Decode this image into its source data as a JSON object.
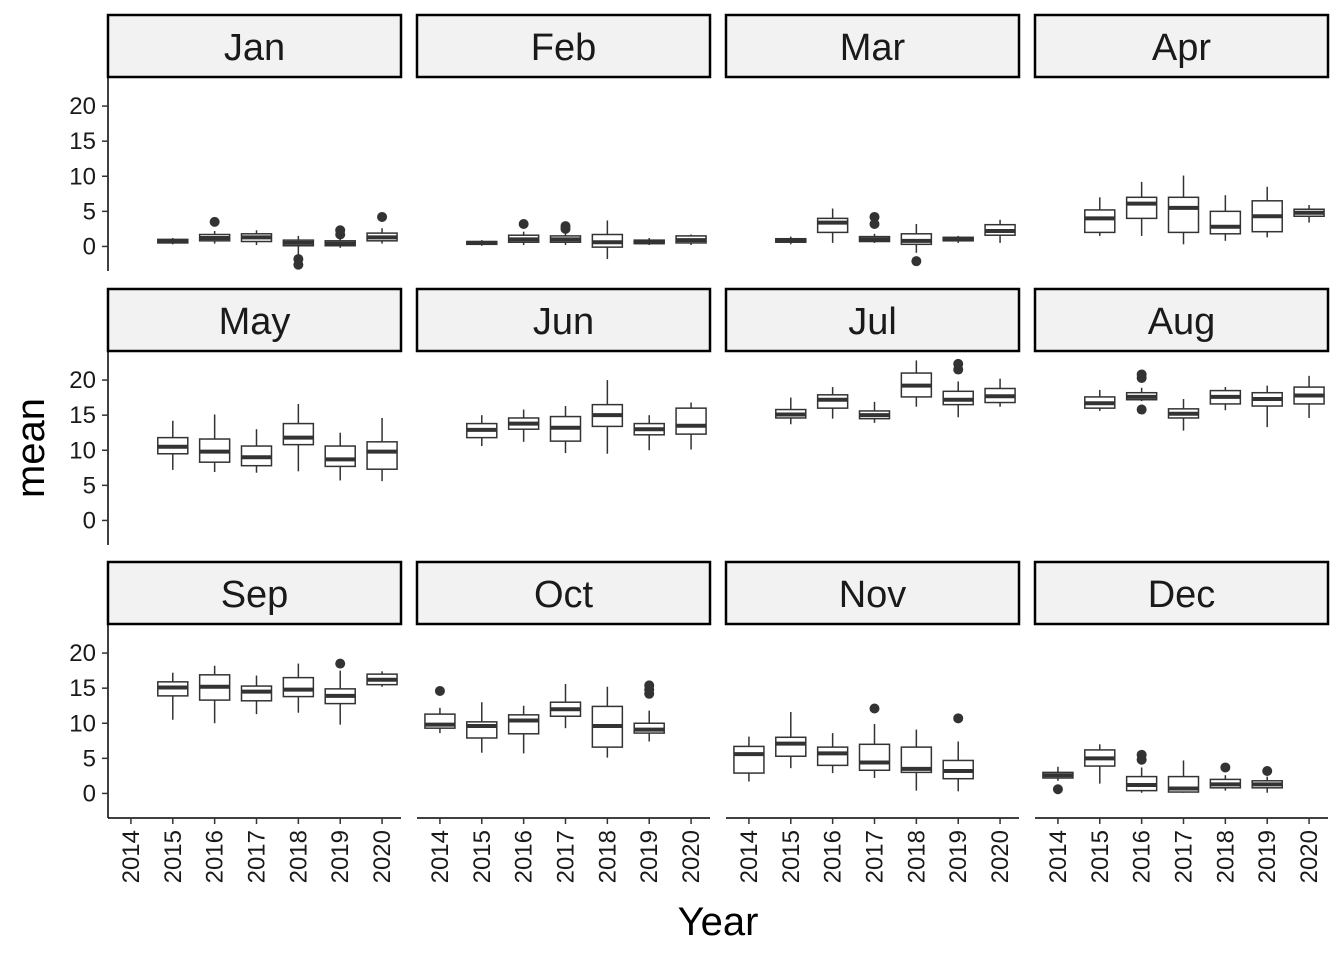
{
  "chart_data": {
    "type": "boxplot",
    "facet_by": "month",
    "x_label": "Year",
    "y_label": "mean",
    "x_categories": [
      "2014",
      "2015",
      "2016",
      "2017",
      "2018",
      "2019",
      "2020"
    ],
    "y_ticks": [
      0,
      5,
      10,
      15,
      20
    ],
    "ylim": [
      -3.5,
      24
    ],
    "grid": false,
    "colors": {
      "box_fill": "#ffffff",
      "box_line": "#333333",
      "strip_fill": "#f2f2f2",
      "strip_border": "#000000"
    },
    "panels": [
      {
        "month": "Jan",
        "boxes": [
          {
            "year": "2015",
            "whisker_low": 0.3,
            "q1": 0.5,
            "median": 0.8,
            "q3": 1.0,
            "whisker_high": 1.2,
            "outliers": []
          },
          {
            "year": "2016",
            "whisker_low": 0.4,
            "q1": 0.8,
            "median": 1.2,
            "q3": 1.7,
            "whisker_high": 2.2,
            "outliers": [
              3.5
            ]
          },
          {
            "year": "2017",
            "whisker_low": 0.2,
            "q1": 0.7,
            "median": 1.3,
            "q3": 1.8,
            "whisker_high": 2.3,
            "outliers": []
          },
          {
            "year": "2018",
            "whisker_low": -1.2,
            "q1": 0.1,
            "median": 0.5,
            "q3": 0.9,
            "whisker_high": 1.5,
            "outliers": [
              -1.8,
              -2.6
            ]
          },
          {
            "year": "2019",
            "whisker_low": -0.2,
            "q1": 0.1,
            "median": 0.4,
            "q3": 0.8,
            "whisker_high": 1.3,
            "outliers": [
              1.7,
              2.3
            ]
          },
          {
            "year": "2020",
            "whisker_low": 0.4,
            "q1": 0.8,
            "median": 1.3,
            "q3": 1.9,
            "whisker_high": 2.6,
            "outliers": [
              4.2
            ]
          }
        ]
      },
      {
        "month": "Feb",
        "boxes": [
          {
            "year": "2015",
            "whisker_low": 0.1,
            "q1": 0.3,
            "median": 0.5,
            "q3": 0.7,
            "whisker_high": 0.9,
            "outliers": []
          },
          {
            "year": "2016",
            "whisker_low": 0.2,
            "q1": 0.6,
            "median": 1.0,
            "q3": 1.6,
            "whisker_high": 2.1,
            "outliers": [
              3.2
            ]
          },
          {
            "year": "2017",
            "whisker_low": 0.2,
            "q1": 0.6,
            "median": 1.0,
            "q3": 1.5,
            "whisker_high": 1.9,
            "outliers": [
              2.5,
              2.9
            ]
          },
          {
            "year": "2018",
            "whisker_low": -1.8,
            "q1": -0.1,
            "median": 0.6,
            "q3": 1.7,
            "whisker_high": 3.7,
            "outliers": []
          },
          {
            "year": "2019",
            "whisker_low": 0.2,
            "q1": 0.4,
            "median": 0.6,
            "q3": 0.9,
            "whisker_high": 1.2,
            "outliers": []
          },
          {
            "year": "2020",
            "whisker_low": 0.2,
            "q1": 0.5,
            "median": 0.9,
            "q3": 1.5,
            "whisker_high": 1.7,
            "outliers": []
          }
        ]
      },
      {
        "month": "Mar",
        "boxes": [
          {
            "year": "2015",
            "whisker_low": 0.3,
            "q1": 0.6,
            "median": 0.9,
            "q3": 1.1,
            "whisker_high": 1.4,
            "outliers": []
          },
          {
            "year": "2016",
            "whisker_low": 0.5,
            "q1": 2.0,
            "median": 3.4,
            "q3": 4.0,
            "whisker_high": 5.4,
            "outliers": []
          },
          {
            "year": "2017",
            "whisker_low": 0.5,
            "q1": 0.7,
            "median": 1.0,
            "q3": 1.4,
            "whisker_high": 1.8,
            "outliers": [
              3.2,
              4.2
            ]
          },
          {
            "year": "2018",
            "whisker_low": -0.9,
            "q1": 0.3,
            "median": 0.8,
            "q3": 1.8,
            "whisker_high": 3.2,
            "outliers": [
              -2.1
            ]
          },
          {
            "year": "2019",
            "whisker_low": 0.5,
            "q1": 0.8,
            "median": 1.0,
            "q3": 1.3,
            "whisker_high": 1.5,
            "outliers": []
          },
          {
            "year": "2020",
            "whisker_low": 0.5,
            "q1": 1.6,
            "median": 2.2,
            "q3": 3.1,
            "whisker_high": 3.8,
            "outliers": []
          }
        ]
      },
      {
        "month": "Apr",
        "boxes": [
          {
            "year": "2015",
            "whisker_low": 1.5,
            "q1": 2.0,
            "median": 4.0,
            "q3": 5.2,
            "whisker_high": 7.0,
            "outliers": []
          },
          {
            "year": "2016",
            "whisker_low": 1.5,
            "q1": 4.0,
            "median": 6.1,
            "q3": 7.0,
            "whisker_high": 9.2,
            "outliers": []
          },
          {
            "year": "2017",
            "whisker_low": 0.3,
            "q1": 2.0,
            "median": 5.5,
            "q3": 7.0,
            "whisker_high": 10.1,
            "outliers": []
          },
          {
            "year": "2018",
            "whisker_low": 0.8,
            "q1": 1.8,
            "median": 2.8,
            "q3": 5.0,
            "whisker_high": 7.3,
            "outliers": []
          },
          {
            "year": "2019",
            "whisker_low": 1.3,
            "q1": 2.1,
            "median": 4.3,
            "q3": 6.5,
            "whisker_high": 8.5,
            "outliers": []
          },
          {
            "year": "2020",
            "whisker_low": 3.4,
            "q1": 4.3,
            "median": 4.8,
            "q3": 5.3,
            "whisker_high": 5.9,
            "outliers": []
          }
        ]
      },
      {
        "month": "May",
        "boxes": [
          {
            "year": "2015",
            "whisker_low": 7.2,
            "q1": 9.5,
            "median": 10.5,
            "q3": 11.8,
            "whisker_high": 14.2,
            "outliers": []
          },
          {
            "year": "2016",
            "whisker_low": 6.9,
            "q1": 8.3,
            "median": 9.8,
            "q3": 11.6,
            "whisker_high": 15.1,
            "outliers": []
          },
          {
            "year": "2017",
            "whisker_low": 6.8,
            "q1": 7.8,
            "median": 9.0,
            "q3": 10.6,
            "whisker_high": 13.0,
            "outliers": []
          },
          {
            "year": "2018",
            "whisker_low": 7.0,
            "q1": 10.8,
            "median": 11.8,
            "q3": 13.8,
            "whisker_high": 16.6,
            "outliers": []
          },
          {
            "year": "2019",
            "whisker_low": 5.7,
            "q1": 7.7,
            "median": 8.7,
            "q3": 10.6,
            "whisker_high": 12.5,
            "outliers": []
          },
          {
            "year": "2020",
            "whisker_low": 5.6,
            "q1": 7.3,
            "median": 9.8,
            "q3": 11.2,
            "whisker_high": 14.6,
            "outliers": []
          }
        ]
      },
      {
        "month": "Jun",
        "boxes": [
          {
            "year": "2015",
            "whisker_low": 10.6,
            "q1": 11.8,
            "median": 12.9,
            "q3": 13.8,
            "whisker_high": 15.0,
            "outliers": []
          },
          {
            "year": "2016",
            "whisker_low": 11.2,
            "q1": 13.0,
            "median": 13.8,
            "q3": 14.6,
            "whisker_high": 15.8,
            "outliers": []
          },
          {
            "year": "2017",
            "whisker_low": 9.6,
            "q1": 11.3,
            "median": 13.2,
            "q3": 14.8,
            "whisker_high": 16.3,
            "outliers": []
          },
          {
            "year": "2018",
            "whisker_low": 9.5,
            "q1": 13.4,
            "median": 15.0,
            "q3": 16.5,
            "whisker_high": 20.0,
            "outliers": []
          },
          {
            "year": "2019",
            "whisker_low": 10.0,
            "q1": 12.2,
            "median": 13.0,
            "q3": 13.8,
            "whisker_high": 15.0,
            "outliers": []
          },
          {
            "year": "2020",
            "whisker_low": 10.1,
            "q1": 12.3,
            "median": 13.5,
            "q3": 16.0,
            "whisker_high": 16.8,
            "outliers": []
          }
        ]
      },
      {
        "month": "Jul",
        "boxes": [
          {
            "year": "2015",
            "whisker_low": 13.7,
            "q1": 14.6,
            "median": 15.1,
            "q3": 15.8,
            "whisker_high": 17.5,
            "outliers": []
          },
          {
            "year": "2016",
            "whisker_low": 14.5,
            "q1": 16.0,
            "median": 17.2,
            "q3": 17.9,
            "whisker_high": 19.0,
            "outliers": []
          },
          {
            "year": "2017",
            "whisker_low": 13.9,
            "q1": 14.5,
            "median": 15.0,
            "q3": 15.6,
            "whisker_high": 16.9,
            "outliers": []
          },
          {
            "year": "2018",
            "whisker_low": 16.2,
            "q1": 17.6,
            "median": 19.2,
            "q3": 21.0,
            "whisker_high": 22.8,
            "outliers": []
          },
          {
            "year": "2019",
            "whisker_low": 14.7,
            "q1": 16.5,
            "median": 17.2,
            "q3": 18.4,
            "whisker_high": 19.8,
            "outliers": [
              21.5,
              22.3
            ]
          },
          {
            "year": "2020",
            "whisker_low": 16.2,
            "q1": 16.8,
            "median": 17.7,
            "q3": 18.8,
            "whisker_high": 20.2,
            "outliers": []
          }
        ]
      },
      {
        "month": "Aug",
        "boxes": [
          {
            "year": "2015",
            "whisker_low": 15.6,
            "q1": 16.0,
            "median": 16.7,
            "q3": 17.6,
            "whisker_high": 18.6,
            "outliers": []
          },
          {
            "year": "2016",
            "whisker_low": 17.0,
            "q1": 17.2,
            "median": 17.6,
            "q3": 18.2,
            "whisker_high": 18.9,
            "outliers": [
              15.8,
              20.3,
              20.8
            ]
          },
          {
            "year": "2017",
            "whisker_low": 12.8,
            "q1": 14.6,
            "median": 15.2,
            "q3": 15.9,
            "whisker_high": 17.3,
            "outliers": []
          },
          {
            "year": "2018",
            "whisker_low": 15.7,
            "q1": 16.6,
            "median": 17.6,
            "q3": 18.5,
            "whisker_high": 19.0,
            "outliers": []
          },
          {
            "year": "2019",
            "whisker_low": 13.3,
            "q1": 16.3,
            "median": 17.3,
            "q3": 18.2,
            "whisker_high": 19.2,
            "outliers": []
          },
          {
            "year": "2020",
            "whisker_low": 14.6,
            "q1": 16.6,
            "median": 17.8,
            "q3": 19.0,
            "whisker_high": 20.6,
            "outliers": []
          }
        ]
      },
      {
        "month": "Sep",
        "boxes": [
          {
            "year": "2015",
            "whisker_low": 10.5,
            "q1": 13.9,
            "median": 15.1,
            "q3": 15.9,
            "whisker_high": 17.2,
            "outliers": []
          },
          {
            "year": "2016",
            "whisker_low": 10.0,
            "q1": 13.3,
            "median": 15.2,
            "q3": 16.9,
            "whisker_high": 18.2,
            "outliers": []
          },
          {
            "year": "2017",
            "whisker_low": 11.3,
            "q1": 13.2,
            "median": 14.5,
            "q3": 15.3,
            "whisker_high": 16.8,
            "outliers": []
          },
          {
            "year": "2018",
            "whisker_low": 11.5,
            "q1": 13.8,
            "median": 14.8,
            "q3": 16.5,
            "whisker_high": 18.5,
            "outliers": []
          },
          {
            "year": "2019",
            "whisker_low": 9.8,
            "q1": 12.8,
            "median": 13.9,
            "q3": 14.9,
            "whisker_high": 17.5,
            "outliers": [
              18.5
            ]
          },
          {
            "year": "2020",
            "whisker_low": 15.2,
            "q1": 15.5,
            "median": 16.2,
            "q3": 17.0,
            "whisker_high": 17.4,
            "outliers": []
          }
        ]
      },
      {
        "month": "Oct",
        "boxes": [
          {
            "year": "2014",
            "whisker_low": 8.6,
            "q1": 9.3,
            "median": 9.8,
            "q3": 11.3,
            "whisker_high": 12.2,
            "outliers": [
              14.6
            ]
          },
          {
            "year": "2015",
            "whisker_low": 5.8,
            "q1": 7.9,
            "median": 9.6,
            "q3": 10.2,
            "whisker_high": 13.0,
            "outliers": []
          },
          {
            "year": "2016",
            "whisker_low": 5.7,
            "q1": 8.5,
            "median": 10.4,
            "q3": 11.2,
            "whisker_high": 12.5,
            "outliers": []
          },
          {
            "year": "2017",
            "whisker_low": 9.3,
            "q1": 11.0,
            "median": 12.0,
            "q3": 13.0,
            "whisker_high": 15.6,
            "outliers": []
          },
          {
            "year": "2018",
            "whisker_low": 5.1,
            "q1": 6.6,
            "median": 9.6,
            "q3": 12.4,
            "whisker_high": 15.2,
            "outliers": []
          },
          {
            "year": "2019",
            "whisker_low": 7.4,
            "q1": 8.6,
            "median": 9.1,
            "q3": 10.0,
            "whisker_high": 11.8,
            "outliers": [
              14.2,
              14.8,
              15.4
            ]
          }
        ]
      },
      {
        "month": "Nov",
        "boxes": [
          {
            "year": "2014",
            "whisker_low": 1.7,
            "q1": 2.9,
            "median": 5.6,
            "q3": 6.7,
            "whisker_high": 8.1,
            "outliers": []
          },
          {
            "year": "2015",
            "whisker_low": 3.6,
            "q1": 5.3,
            "median": 7.1,
            "q3": 8.0,
            "whisker_high": 11.6,
            "outliers": []
          },
          {
            "year": "2016",
            "whisker_low": 2.9,
            "q1": 4.0,
            "median": 5.7,
            "q3": 6.6,
            "whisker_high": 8.6,
            "outliers": []
          },
          {
            "year": "2017",
            "whisker_low": 2.2,
            "q1": 3.3,
            "median": 4.4,
            "q3": 7.0,
            "whisker_high": 9.9,
            "outliers": [
              12.1
            ]
          },
          {
            "year": "2018",
            "whisker_low": 0.4,
            "q1": 3.0,
            "median": 3.5,
            "q3": 6.6,
            "whisker_high": 9.1,
            "outliers": []
          },
          {
            "year": "2019",
            "whisker_low": 0.3,
            "q1": 2.1,
            "median": 3.2,
            "q3": 4.7,
            "whisker_high": 7.4,
            "outliers": [
              10.7
            ]
          }
        ]
      },
      {
        "month": "Dec",
        "boxes": [
          {
            "year": "2014",
            "whisker_low": 1.8,
            "q1": 2.2,
            "median": 2.6,
            "q3": 3.0,
            "whisker_high": 3.8,
            "outliers": [
              0.6
            ]
          },
          {
            "year": "2015",
            "whisker_low": 1.4,
            "q1": 3.9,
            "median": 5.0,
            "q3": 6.2,
            "whisker_high": 7.0,
            "outliers": []
          },
          {
            "year": "2016",
            "whisker_low": 0.1,
            "q1": 0.4,
            "median": 1.2,
            "q3": 2.4,
            "whisker_high": 3.7,
            "outliers": [
              4.8,
              5.5
            ]
          },
          {
            "year": "2017",
            "whisker_low": 0.1,
            "q1": 0.2,
            "median": 0.7,
            "q3": 2.4,
            "whisker_high": 4.7,
            "outliers": []
          },
          {
            "year": "2018",
            "whisker_low": 0.4,
            "q1": 0.8,
            "median": 1.3,
            "q3": 2.0,
            "whisker_high": 2.6,
            "outliers": [
              3.7
            ]
          },
          {
            "year": "2019",
            "whisker_low": 0.1,
            "q1": 0.8,
            "median": 1.3,
            "q3": 1.8,
            "whisker_high": 2.4,
            "outliers": [
              3.2
            ]
          }
        ]
      }
    ]
  }
}
